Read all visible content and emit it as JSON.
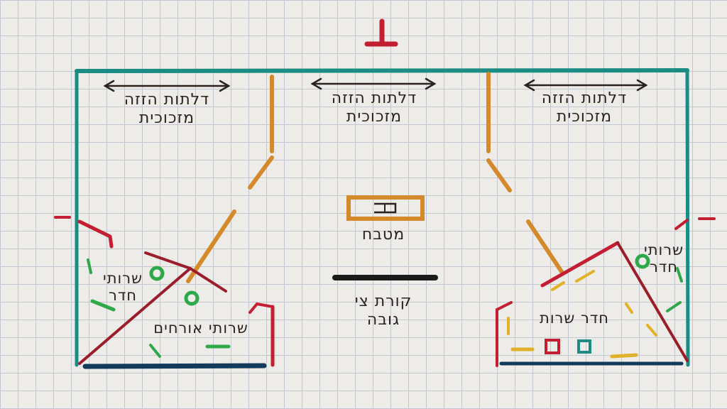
{
  "diagram": {
    "colors": {
      "walls": "#1b8b84",
      "doors": "#d48a2a",
      "accent_red": "#c41e32",
      "dark_red": "#9c1d2a",
      "green": "#2fa84a",
      "yellow": "#e2b12a",
      "black": "#1a1a1a",
      "navy": "#123a5a",
      "ink": "#2b2220"
    },
    "labels": {
      "sliding_door_left": {
        "line1": "דלתות הזזה",
        "line2": "מזכוכית"
      },
      "sliding_door_center": {
        "line1": "דלתות הזזה",
        "line2": "מזכוכית"
      },
      "sliding_door_right": {
        "line1": "דלתות הזזה",
        "line2": "מזכוכית"
      },
      "kitchen": "מטבח",
      "high_counter": {
        "line1": "קורת צי",
        "line2": "גובה"
      },
      "staff_restroom": {
        "line1": "שרותי",
        "line2": "חדר"
      },
      "guest_restroom": "שרותי אורחים",
      "preparation_room": "חדר שרות",
      "room_restroom_right": {
        "line1": "שרותי",
        "line2": "חדר"
      }
    },
    "icons": [
      "top-marker-icon",
      "double-arrow-icon",
      "table-icon",
      "circle-icon",
      "square-icon"
    ]
  }
}
